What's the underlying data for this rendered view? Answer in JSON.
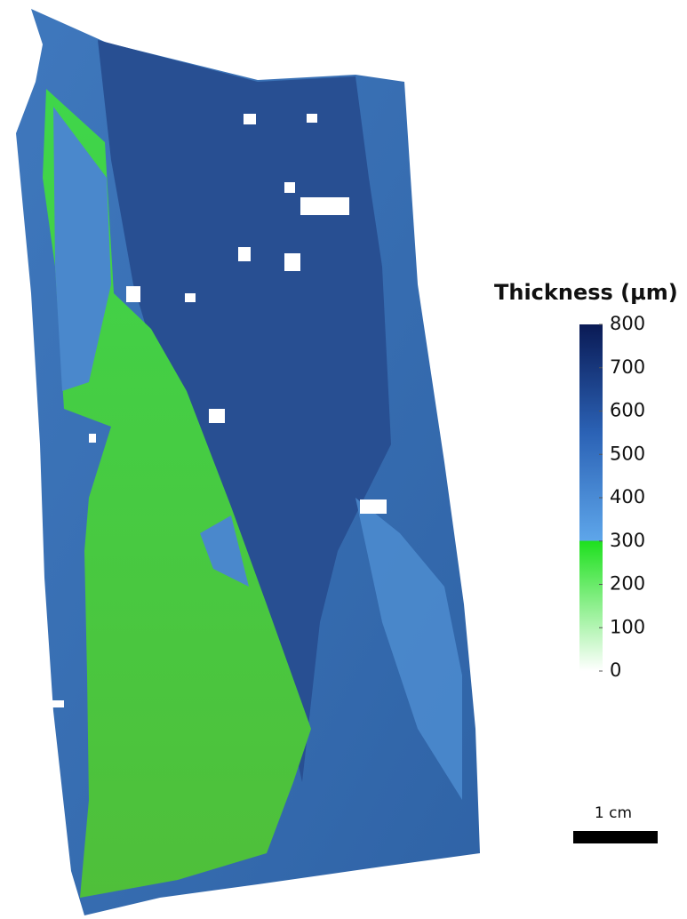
{
  "colorbar": {
    "title": "Thickness (µm)",
    "lim": [
      0,
      800
    ],
    "ticks": [
      0,
      100,
      200,
      300,
      400,
      500,
      600,
      700,
      800
    ],
    "stops": [
      {
        "value": 0,
        "color": "#ffffff"
      },
      {
        "value": 300,
        "color": "#1ee01e"
      },
      {
        "value": 300,
        "color": "#5ea6ea"
      },
      {
        "value": 550,
        "color": "#2b62b5"
      },
      {
        "value": 800,
        "color": "#0a1a55"
      }
    ]
  },
  "scale_bar": {
    "label": "1 cm"
  }
}
